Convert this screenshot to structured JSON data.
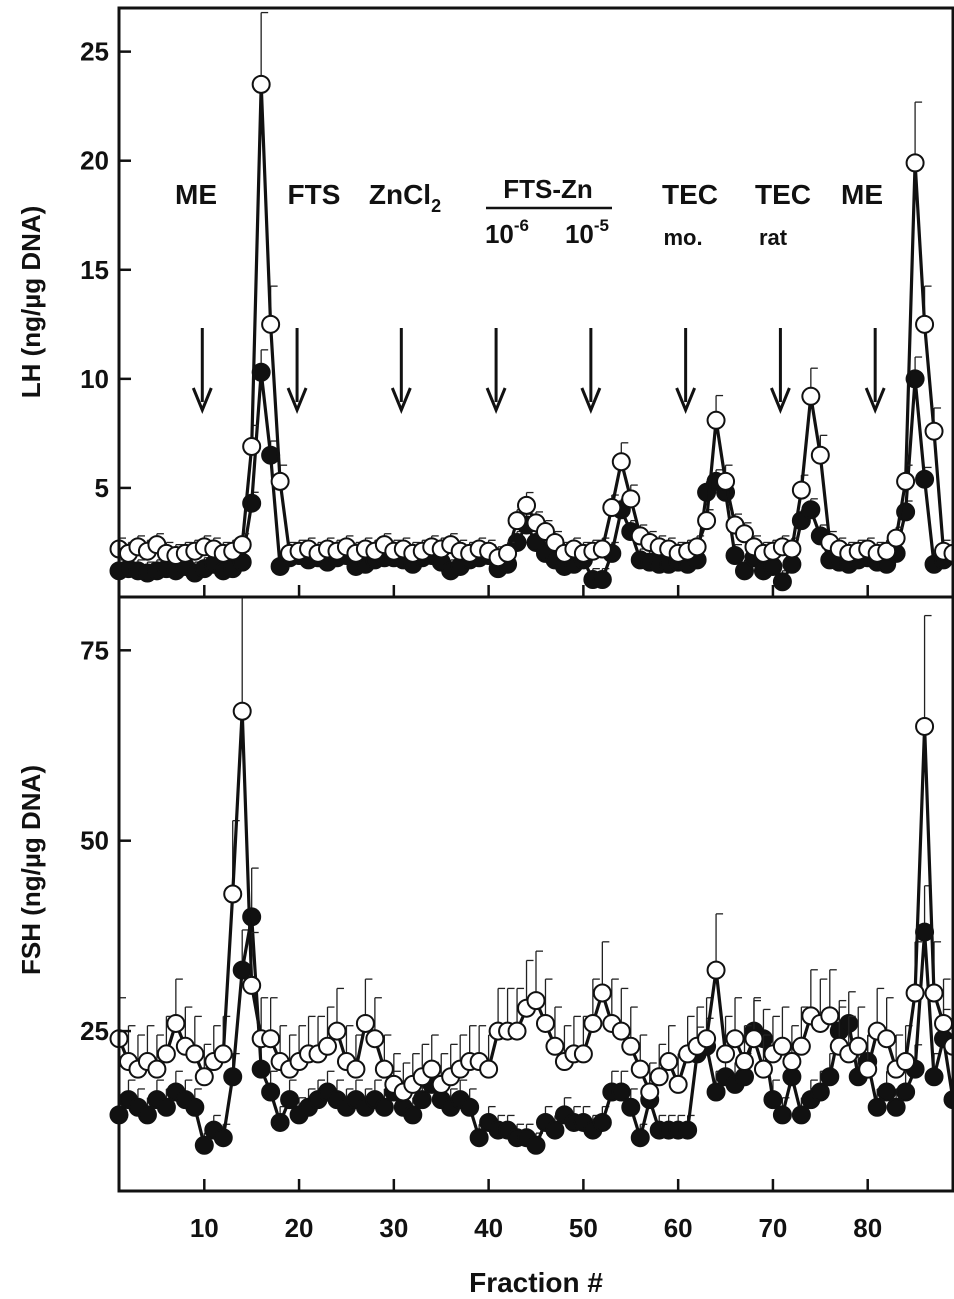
{
  "chart_data": [
    {
      "type": "line",
      "ylabel": "LH (ng/µg DNA)",
      "xlabel": "",
      "xlim": [
        1,
        89
      ],
      "ylim": [
        0,
        27
      ],
      "yticks": [
        5,
        10,
        15,
        20,
        25
      ],
      "xticks": [
        10,
        20,
        30,
        40,
        50,
        60,
        70,
        80
      ],
      "tick_labels": false,
      "annotations": [
        {
          "text": "ME",
          "x": 10
        },
        {
          "text": "FTS",
          "x": 20
        },
        {
          "text": "ZnCl",
          "sub": "2",
          "x": 31
        },
        {
          "text": "FTS-Zn",
          "x": 46
        },
        {
          "text": "10",
          "sup": "-6",
          "x": 41
        },
        {
          "text": "10",
          "sup": "-5",
          "x": 51
        },
        {
          "text": "TEC",
          "x": 61
        },
        {
          "text": "mo.",
          "x": 61
        },
        {
          "text": "TEC",
          "x": 71
        },
        {
          "text": "rat",
          "x": 71
        },
        {
          "text": "ME",
          "x": 81
        }
      ],
      "arrows_x": [
        10,
        20,
        31,
        41,
        51,
        61,
        71,
        81
      ],
      "series": [
        {
          "marker": "filled",
          "x": [
            1,
            2,
            3,
            4,
            5,
            6,
            7,
            8,
            9,
            10,
            11,
            12,
            13,
            14,
            15,
            16,
            17,
            18,
            19,
            20,
            21,
            22,
            23,
            24,
            25,
            26,
            27,
            28,
            29,
            30,
            31,
            32,
            33,
            34,
            35,
            36,
            37,
            38,
            39,
            40,
            41,
            42,
            43,
            44,
            45,
            46,
            47,
            48,
            49,
            50,
            51,
            52,
            53,
            54,
            55,
            56,
            57,
            58,
            59,
            60,
            61,
            62,
            63,
            64,
            65,
            66,
            67,
            68,
            69,
            70,
            71,
            72,
            73,
            74,
            75,
            76,
            77,
            78,
            79,
            80,
            81,
            82,
            83,
            84,
            85,
            86,
            87,
            88,
            89
          ],
          "values": [
            1.2,
            1.3,
            1.2,
            1.1,
            1.2,
            1.3,
            1.2,
            1.4,
            1.1,
            1.3,
            1.5,
            1.2,
            1.3,
            1.6,
            4.3,
            10.3,
            6.5,
            1.4,
            1.8,
            1.9,
            1.7,
            1.8,
            1.6,
            1.8,
            1.9,
            1.4,
            1.5,
            1.7,
            1.8,
            1.8,
            1.7,
            1.5,
            1.8,
            1.9,
            1.6,
            1.2,
            1.4,
            1.7,
            1.8,
            1.9,
            1.3,
            1.5,
            2.5,
            3.3,
            2.5,
            2.0,
            1.7,
            1.4,
            1.5,
            1.7,
            0.8,
            0.8,
            2.0,
            4.0,
            3.0,
            1.7,
            1.6,
            1.5,
            1.5,
            1.6,
            1.5,
            1.7,
            4.8,
            5.3,
            4.8,
            1.9,
            1.2,
            1.8,
            1.2,
            1.4,
            0.7,
            1.5,
            3.5,
            4.0,
            2.8,
            1.7,
            1.6,
            1.5,
            1.7,
            1.8,
            1.6,
            1.5,
            2.0,
            3.9,
            10.0,
            5.4,
            1.5,
            1.7,
            2.0
          ]
        },
        {
          "marker": "open",
          "x": [
            1,
            2,
            3,
            4,
            5,
            6,
            7,
            8,
            9,
            10,
            11,
            12,
            13,
            14,
            15,
            16,
            17,
            18,
            19,
            20,
            21,
            22,
            23,
            24,
            25,
            26,
            27,
            28,
            29,
            30,
            31,
            32,
            33,
            34,
            35,
            36,
            37,
            38,
            39,
            40,
            41,
            42,
            43,
            44,
            45,
            46,
            47,
            48,
            49,
            50,
            51,
            52,
            53,
            54,
            55,
            56,
            57,
            58,
            59,
            60,
            61,
            62,
            63,
            64,
            65,
            66,
            67,
            68,
            69,
            70,
            71,
            72,
            73,
            74,
            75,
            76,
            77,
            78,
            79,
            80,
            81,
            82,
            83,
            84,
            85,
            86,
            87,
            88,
            89
          ],
          "values": [
            2.2,
            2.0,
            2.3,
            2.1,
            2.4,
            2.0,
            1.9,
            2.0,
            2.1,
            2.3,
            2.2,
            2.0,
            2.1,
            2.4,
            6.9,
            23.5,
            12.5,
            5.3,
            2.0,
            2.1,
            2.2,
            2.0,
            2.2,
            2.1,
            2.3,
            2.0,
            2.2,
            2.1,
            2.4,
            2.1,
            2.2,
            2.0,
            2.1,
            2.3,
            2.2,
            2.4,
            2.1,
            2.0,
            2.2,
            2.1,
            1.8,
            2.0,
            3.5,
            4.2,
            3.4,
            3.0,
            2.5,
            2.0,
            2.2,
            2.0,
            2.1,
            2.2,
            4.1,
            6.2,
            4.5,
            2.8,
            2.5,
            2.3,
            2.2,
            2.0,
            2.1,
            2.3,
            3.5,
            8.1,
            5.3,
            3.3,
            2.9,
            2.3,
            2.0,
            2.1,
            2.3,
            2.2,
            4.9,
            9.2,
            6.5,
            2.5,
            2.2,
            2.0,
            2.1,
            2.2,
            2.0,
            2.1,
            2.7,
            5.3,
            19.9,
            12.5,
            7.6,
            2.1,
            2.0
          ]
        }
      ]
    },
    {
      "type": "line",
      "ylabel": "FSH (ng/µg DNA)",
      "xlabel": "Fraction #",
      "xlim": [
        1,
        89
      ],
      "ylim": [
        4,
        82
      ],
      "yticks": [
        25,
        50,
        75
      ],
      "xticks": [
        10,
        20,
        30,
        40,
        50,
        60,
        70,
        80
      ],
      "series": [
        {
          "marker": "filled",
          "x": [
            1,
            2,
            3,
            4,
            5,
            6,
            7,
            8,
            9,
            10,
            11,
            12,
            13,
            14,
            15,
            16,
            17,
            18,
            19,
            20,
            21,
            22,
            23,
            24,
            25,
            26,
            27,
            28,
            29,
            30,
            31,
            32,
            33,
            34,
            35,
            36,
            37,
            38,
            39,
            40,
            41,
            42,
            43,
            44,
            45,
            46,
            47,
            48,
            49,
            50,
            51,
            52,
            53,
            54,
            55,
            56,
            57,
            58,
            59,
            60,
            61,
            62,
            63,
            64,
            65,
            66,
            67,
            68,
            69,
            70,
            71,
            72,
            73,
            74,
            75,
            76,
            77,
            78,
            79,
            80,
            81,
            82,
            83,
            84,
            85,
            86,
            87,
            88,
            89
          ],
          "values": [
            14,
            16,
            15,
            14,
            16,
            15,
            17,
            16,
            15,
            10,
            12,
            11,
            19,
            33,
            40,
            20,
            17,
            13,
            16,
            14,
            15,
            16,
            17,
            16,
            15,
            16,
            15,
            16,
            15,
            17,
            15,
            14,
            16,
            18,
            16,
            15,
            16,
            15,
            11,
            13,
            12,
            12,
            11,
            11,
            10,
            13,
            12,
            14,
            13,
            13,
            12,
            13,
            17,
            17,
            15,
            11,
            16,
            12,
            12,
            12,
            12,
            22,
            23,
            17,
            19,
            18,
            19,
            25,
            24,
            16,
            14,
            19,
            14,
            16,
            17,
            19,
            25,
            26,
            19,
            21,
            15,
            17,
            15,
            17,
            20,
            38,
            19,
            24,
            16
          ]
        },
        {
          "marker": "open",
          "x": [
            1,
            2,
            3,
            4,
            5,
            6,
            7,
            8,
            9,
            10,
            11,
            12,
            13,
            14,
            15,
            16,
            17,
            18,
            19,
            20,
            21,
            22,
            23,
            24,
            25,
            26,
            27,
            28,
            29,
            30,
            31,
            32,
            33,
            34,
            35,
            36,
            37,
            38,
            39,
            40,
            41,
            42,
            43,
            44,
            45,
            46,
            47,
            48,
            49,
            50,
            51,
            52,
            53,
            54,
            55,
            56,
            57,
            58,
            59,
            60,
            61,
            62,
            63,
            64,
            65,
            66,
            67,
            68,
            69,
            70,
            71,
            72,
            73,
            74,
            75,
            76,
            77,
            78,
            79,
            80,
            81,
            82,
            83,
            84,
            85,
            86,
            87,
            88,
            89
          ],
          "values": [
            24,
            21,
            20,
            21,
            20,
            22,
            26,
            23,
            22,
            19,
            21,
            22,
            43,
            67,
            31,
            24,
            24,
            21,
            20,
            21,
            22,
            22,
            23,
            25,
            21,
            20,
            26,
            24,
            20,
            18,
            17,
            18,
            19,
            20,
            18,
            19,
            20,
            21,
            21,
            20,
            25,
            25,
            25,
            28,
            29,
            26,
            23,
            21,
            22,
            22,
            26,
            30,
            26,
            25,
            23,
            20,
            17,
            19,
            21,
            18,
            22,
            23,
            24,
            33,
            22,
            24,
            21,
            24,
            20,
            22,
            23,
            21,
            23,
            27,
            26,
            27,
            23,
            22,
            23,
            20,
            25,
            24,
            20,
            21,
            30,
            65,
            30,
            26,
            23
          ]
        }
      ]
    }
  ]
}
